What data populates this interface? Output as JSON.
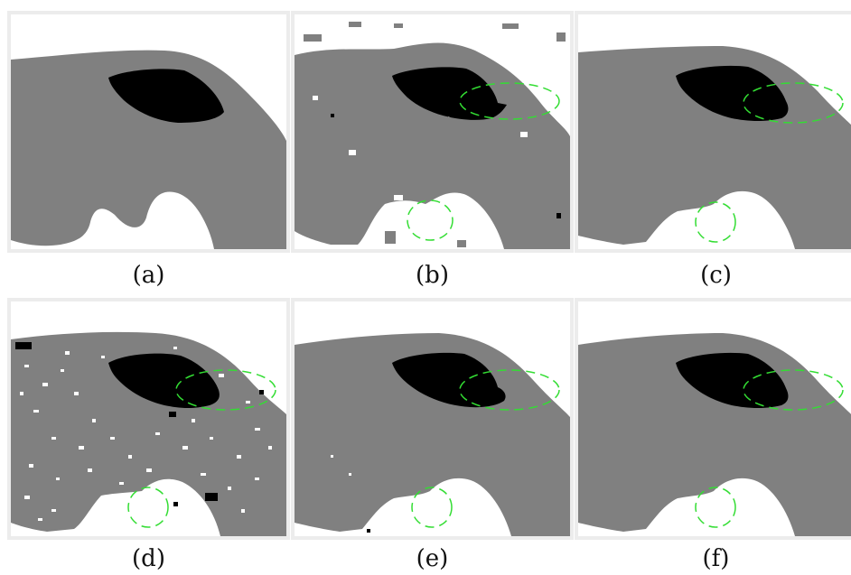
{
  "panels": [
    {
      "label": "(a)"
    },
    {
      "label": "(b)"
    },
    {
      "label": "(c)"
    },
    {
      "label": "(d)"
    },
    {
      "label": "(e)"
    },
    {
      "label": "(f)"
    }
  ],
  "colors": {
    "background": "#ffffff",
    "tissue": "#808080",
    "lesion": "#000000",
    "highlight": "#33dd33",
    "frame": "#ececec"
  }
}
